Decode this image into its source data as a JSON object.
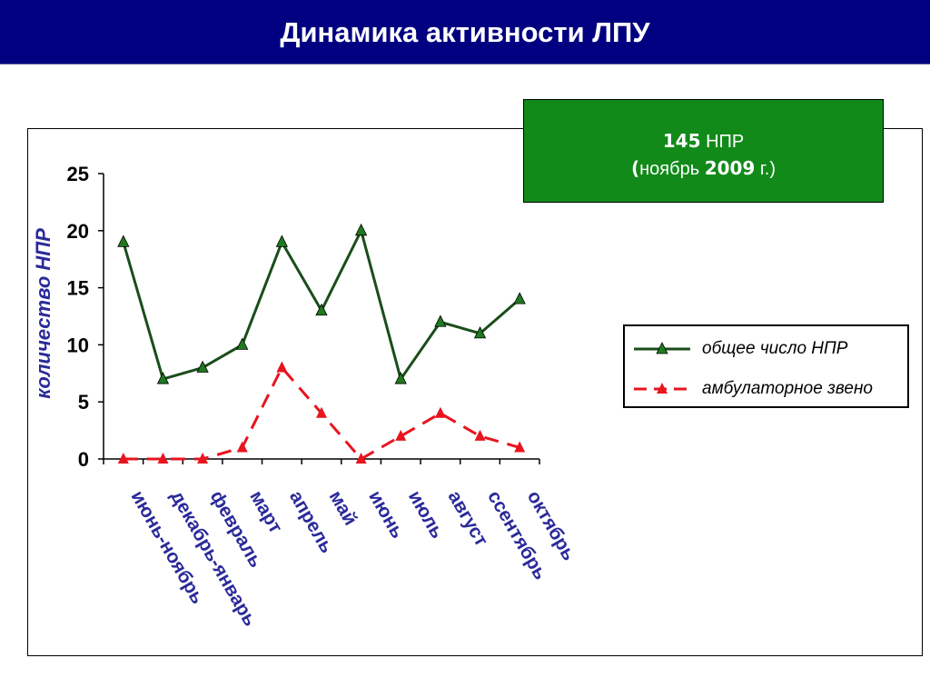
{
  "header": {
    "title": "Динамика активности ЛПУ"
  },
  "info_box": {
    "count": "145",
    "unit": "НПР",
    "open_paren": "(",
    "month": "ноябрь",
    "year": "2009",
    "suffix": "г.)"
  },
  "chart_data": {
    "type": "line",
    "title": "",
    "xlabel": "",
    "ylabel": "количество НПР",
    "ylim": [
      0,
      25
    ],
    "yticks": [
      "0",
      "5",
      "10",
      "15",
      "20",
      "25"
    ],
    "categories": [
      "июнь-ноябрь",
      "декабрь-январь",
      "февраль",
      "март",
      "апрель",
      "май",
      "июнь",
      "июль",
      "август",
      "ссентябрь",
      "октябрь"
    ],
    "series": [
      {
        "name": "общее число НПР",
        "values": [
          19,
          7,
          8,
          10,
          19,
          13,
          20,
          7,
          12,
          11,
          14
        ],
        "color": "#1a4d1a",
        "marker_color": "#1f7a1f",
        "style": "solid"
      },
      {
        "name": "амбулаторное звено",
        "values": [
          0,
          0,
          0,
          1,
          8,
          4,
          0,
          2,
          4,
          2,
          1
        ],
        "color": "#e8141e",
        "marker_color": "#e8141e",
        "style": "dashed"
      }
    ],
    "legend_position": "right",
    "grid": false,
    "ylabel_color": "#2a2a9a",
    "xtick_color": "#2a2a9a"
  }
}
